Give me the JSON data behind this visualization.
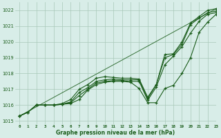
{
  "title": "Graphe pression niveau de la mer (hPa)",
  "background_color": "#d8ede8",
  "grid_color": "#a8c8b8",
  "line_color": "#1a5c1a",
  "marker_color": "#1a5c1a",
  "xlim": [
    -0.5,
    23
  ],
  "ylim": [
    1014.8,
    1022.5
  ],
  "yticks": [
    1015,
    1016,
    1017,
    1018,
    1019,
    1020,
    1021,
    1022
  ],
  "xticks": [
    0,
    1,
    2,
    3,
    4,
    5,
    6,
    7,
    8,
    9,
    10,
    11,
    12,
    13,
    14,
    15,
    16,
    17,
    18,
    19,
    20,
    21,
    22,
    23
  ],
  "series": [
    [
      1015.3,
      1015.55,
      1016.0,
      1016.0,
      1016.0,
      1016.05,
      1016.1,
      1016.35,
      1016.95,
      1017.3,
      1017.45,
      1017.5,
      1017.5,
      1017.45,
      1017.05,
      1016.15,
      1016.15,
      1017.05,
      1017.25,
      1018.0,
      1019.0,
      1020.6,
      1021.25,
      1021.75
    ],
    [
      1015.3,
      1015.55,
      1016.0,
      1016.0,
      1016.0,
      1016.05,
      1016.15,
      1016.6,
      1017.0,
      1017.4,
      1017.5,
      1017.55,
      1017.55,
      1017.5,
      1017.5,
      1016.3,
      1017.15,
      1018.55,
      1019.1,
      1019.7,
      1020.55,
      1021.3,
      1021.75,
      1021.85
    ],
    [
      1015.3,
      1015.55,
      1016.0,
      1016.0,
      1016.0,
      1016.05,
      1016.2,
      1016.8,
      1017.1,
      1017.5,
      1017.6,
      1017.65,
      1017.6,
      1017.6,
      1017.6,
      1016.4,
      1017.3,
      1019.0,
      1019.2,
      1019.85,
      1021.1,
      1021.5,
      1021.85,
      1021.95
    ],
    [
      1015.3,
      1015.55,
      1016.0,
      1016.0,
      1016.0,
      1016.1,
      1016.35,
      1017.0,
      1017.3,
      1017.7,
      1017.8,
      1017.75,
      1017.7,
      1017.7,
      1017.65,
      1016.5,
      1017.3,
      1019.2,
      1019.25,
      1020.0,
      1021.2,
      1021.6,
      1022.0,
      1022.1
    ]
  ],
  "straight_line": [
    1015.3,
    1022.1
  ]
}
